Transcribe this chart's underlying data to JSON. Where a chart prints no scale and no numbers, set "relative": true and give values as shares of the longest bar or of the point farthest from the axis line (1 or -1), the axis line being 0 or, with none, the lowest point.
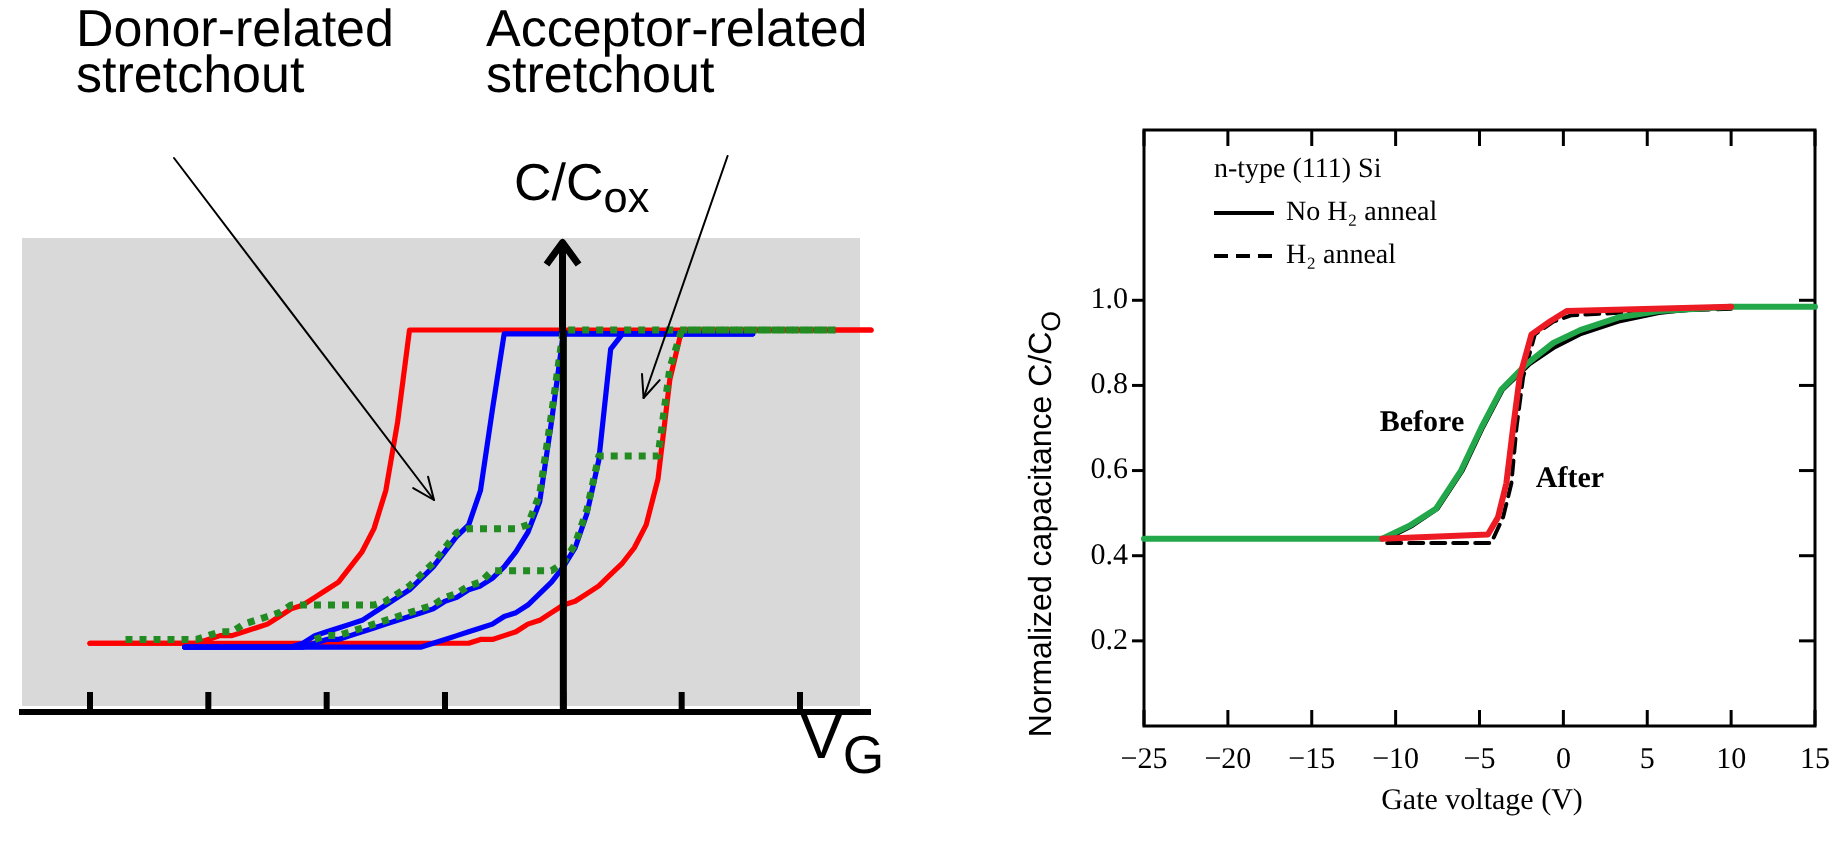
{
  "chart_data": [
    {
      "type": "line",
      "relative": true,
      "marker": "none",
      "xlabel": "V$_{G}$",
      "ylabel": "C/C$_{ox}$",
      "annotations": [
        "Donor-related stretchout",
        "Acceptor-related stretchout"
      ],
      "categories": [
        null,
        null,
        null,
        null,
        null,
        null,
        null,
        null,
        null,
        null,
        null,
        null,
        null,
        null,
        null,
        null,
        null,
        null,
        null,
        null,
        null,
        null,
        null,
        null,
        null,
        null,
        null,
        null,
        null,
        null,
        null,
        null,
        null,
        null,
        null,
        null,
        null,
        null,
        null,
        null,
        null,
        null,
        null,
        null,
        null,
        null,
        null,
        null,
        null,
        null,
        null,
        null,
        null,
        null,
        null,
        null,
        null,
        null,
        null,
        null,
        null,
        null,
        null,
        null,
        null,
        null,
        null,
        null,
        null,
        null,
        null,
        null,
        null
      ],
      "series": [
        {
          "color": "#ff0000",
          "line_style": "solid",
          "values": [
            null,
            null,
            null,
            null,
            null,
            null,
            0.18,
            0.18,
            0.18,
            0.18,
            0.18,
            0.18,
            0.18,
            0.18,
            0.18,
            0.18,
            0.19,
            0.2,
            0.2,
            0.21,
            0.22,
            0.23,
            0.25,
            0.27,
            0.28,
            0.3,
            0.32,
            0.34,
            0.38,
            0.42,
            0.48,
            0.58,
            0.76,
            1,
            1,
            1,
            1,
            1,
            1,
            1,
            1,
            1,
            1,
            1,
            1,
            1,
            1,
            1,
            1,
            1,
            1,
            1,
            1,
            1,
            1,
            1,
            1,
            1,
            1,
            1,
            1,
            1,
            1,
            1,
            1,
            1,
            1,
            1,
            1,
            1,
            1,
            1,
            1
          ]
        },
        {
          "color": "#ff0000",
          "line_style": "solid",
          "values": [
            null,
            null,
            null,
            null,
            null,
            null,
            0.18,
            0.18,
            0.18,
            0.18,
            0.18,
            0.18,
            0.18,
            0.18,
            0.18,
            0.18,
            0.18,
            0.18,
            0.18,
            0.18,
            0.18,
            0.18,
            0.18,
            0.18,
            0.18,
            0.18,
            0.18,
            0.18,
            0.18,
            0.18,
            0.18,
            0.18,
            0.18,
            0.18,
            0.18,
            0.18,
            0.18,
            0.18,
            0.18,
            0.19,
            0.19,
            0.2,
            0.21,
            0.23,
            0.24,
            0.26,
            0.28,
            0.29,
            0.31,
            0.33,
            0.36,
            0.39,
            0.43,
            0.49,
            0.61,
            0.87,
            1,
            1,
            1,
            1,
            1,
            1,
            1,
            1,
            1,
            1,
            1,
            1,
            1,
            1,
            1,
            1,
            1
          ]
        },
        {
          "color": "#0000ff",
          "line_style": "solid",
          "values": [
            null,
            null,
            null,
            null,
            null,
            null,
            null,
            null,
            null,
            null,
            null,
            null,
            null,
            null,
            0.17,
            0.17,
            0.17,
            0.17,
            0.17,
            0.17,
            0.17,
            0.17,
            0.17,
            0.17,
            0.18,
            0.2,
            0.21,
            0.22,
            0.23,
            0.24,
            0.26,
            0.28,
            0.3,
            0.32,
            0.35,
            0.38,
            0.42,
            0.46,
            0.49,
            0.58,
            0.79,
            0.99,
            0.99,
            0.99,
            0.99,
            0.99,
            0.99,
            0.99,
            0.99,
            0.99,
            0.99,
            0.99,
            0.99,
            0.99,
            0.99,
            0.99,
            0.99,
            0.99,
            0.99,
            0.99,
            0.99,
            0.99,
            0.99,
            null,
            null,
            null,
            null,
            null,
            null,
            null,
            null,
            null,
            null
          ]
        },
        {
          "color": "#0000ff",
          "line_style": "solid",
          "values": [
            null,
            null,
            null,
            null,
            null,
            null,
            null,
            null,
            null,
            null,
            null,
            null,
            null,
            null,
            0.17,
            0.17,
            0.17,
            0.17,
            0.17,
            0.17,
            0.17,
            0.17,
            0.17,
            0.17,
            0.17,
            0.18,
            0.19,
            0.19,
            0.2,
            0.21,
            0.22,
            0.23,
            0.24,
            0.25,
            0.26,
            0.27,
            0.29,
            0.3,
            0.32,
            0.33,
            0.35,
            0.38,
            0.42,
            0.47,
            0.55,
            0.76,
            0.99,
            0.99,
            0.99,
            0.99,
            0.99,
            0.99,
            0.99,
            0.99,
            0.99,
            0.99,
            0.99,
            0.99,
            0.99,
            0.99,
            0.99,
            0.99,
            0.99,
            null,
            null,
            null,
            null,
            null,
            null,
            null,
            null,
            null,
            null
          ]
        },
        {
          "color": "#0000ff",
          "line_style": "solid",
          "values": [
            null,
            null,
            null,
            null,
            null,
            null,
            null,
            null,
            null,
            null,
            null,
            null,
            null,
            null,
            0.17,
            0.17,
            0.17,
            0.17,
            0.17,
            0.17,
            0.17,
            0.17,
            0.17,
            0.17,
            0.17,
            0.17,
            0.17,
            0.17,
            0.17,
            0.17,
            0.17,
            0.17,
            0.17,
            0.17,
            0.17,
            0.18,
            0.19,
            0.2,
            0.21,
            0.22,
            0.23,
            0.25,
            0.26,
            0.28,
            0.31,
            0.34,
            0.38,
            0.43,
            0.52,
            0.66,
            0.95,
            0.99,
            0.99,
            0.99,
            0.99,
            0.99,
            0.99,
            0.99,
            0.99,
            0.99,
            0.99,
            0.99,
            0.99,
            null,
            null,
            null,
            null,
            null,
            null,
            null,
            null,
            null,
            null
          ]
        },
        {
          "color": "#228b22",
          "line_style": "dotted",
          "values": [
            null,
            null,
            null,
            null,
            null,
            null,
            null,
            null,
            null,
            0.19,
            0.19,
            0.19,
            0.19,
            0.19,
            0.19,
            0.19,
            0.2,
            0.21,
            0.21,
            0.23,
            0.24,
            0.25,
            0.26,
            0.28,
            0.28,
            0.28,
            0.28,
            0.28,
            0.28,
            0.28,
            0.28,
            0.29,
            0.31,
            0.33,
            0.36,
            0.39,
            0.43,
            0.47,
            0.48,
            0.48,
            0.48,
            0.48,
            0.48,
            0.49,
            0.57,
            0.78,
            1,
            1,
            1,
            1,
            1,
            1,
            1,
            1,
            1,
            1,
            1,
            1,
            1,
            1,
            1,
            1,
            1,
            1,
            1,
            1,
            1,
            1,
            1,
            1,
            null,
            null,
            null
          ]
        },
        {
          "color": "#228b22",
          "line_style": "dotted",
          "values": [
            null,
            null,
            null,
            null,
            null,
            null,
            null,
            null,
            null,
            null,
            null,
            null,
            null,
            null,
            null,
            null,
            null,
            null,
            null,
            null,
            null,
            null,
            null,
            null,
            null,
            0.19,
            0.2,
            0.2,
            0.21,
            0.22,
            0.23,
            0.24,
            0.25,
            0.26,
            0.27,
            0.28,
            0.3,
            0.31,
            0.33,
            0.34,
            0.37,
            0.37,
            0.37,
            0.37,
            0.37,
            0.37,
            0.39,
            0.44,
            0.53,
            0.67,
            0.67,
            0.67,
            0.67,
            0.67,
            0.67,
            0.9,
            1,
            1,
            1,
            1,
            1,
            1,
            1,
            1,
            1,
            1,
            1,
            1,
            1,
            1,
            null,
            null,
            null
          ]
        }
      ]
    },
    {
      "type": "line",
      "legend": "top left",
      "legend_title": "n-type (111) Si",
      "marker": "none",
      "grid": false,
      "xlabel": "Gate voltage (V)",
      "ylabel": "Normalized capacitance C/C$_{O}$",
      "xlim": [
        -25,
        15
      ],
      "ylim": [
        0,
        1.4
      ],
      "xticks": [
        {
          "value": -25,
          "label": "−25"
        },
        {
          "value": -20,
          "label": "−20"
        },
        {
          "value": -15,
          "label": "−15"
        },
        {
          "value": -10,
          "label": "−10"
        },
        {
          "value": -5,
          "label": "−5"
        },
        0,
        5,
        10,
        15
      ],
      "yticks": [
        0.2,
        0.4,
        0.6,
        0.8,
        {
          "value": 1,
          "label": "1.0"
        }
      ],
      "annotations": [
        "Before",
        "After"
      ],
      "series": [
        {
          "name": "No H₂ anneal",
          "color": "#000000",
          "line_style": "solid",
          "x": [
            -25,
            -10.5,
            -9,
            -7.5,
            -6,
            -4.8,
            -3.6,
            -2,
            -0.5,
            1,
            3.3,
            5.7,
            8,
            10,
            15
          ],
          "values": [
            0.44,
            0.44,
            0.47,
            0.51,
            0.6,
            0.7,
            0.79,
            0.85,
            0.89,
            0.92,
            0.95,
            0.97,
            0.98,
            0.985,
            0.985
          ]
        },
        {
          "name": "H₂ anneal",
          "color": "#000000",
          "line_style": "dashed",
          "x": [
            -10.5,
            -4.3,
            -3.6,
            -3.1,
            -2.8,
            -2.4,
            -1.7,
            -0.6,
            0.5,
            3,
            6,
            10
          ],
          "values": [
            0.43,
            0.43,
            0.49,
            0.57,
            0.7,
            0.82,
            0.92,
            0.95,
            0.965,
            0.97,
            0.975,
            0.98
          ]
        },
        {
          "color": "#22a84a",
          "line_style": "solid",
          "x": [
            -25,
            -10.8,
            -9.2,
            -7.6,
            -6.1,
            -4.9,
            -3.7,
            -2.2,
            -0.6,
            1,
            3.3,
            5.7,
            8,
            10,
            15
          ],
          "values": [
            0.44,
            0.44,
            0.47,
            0.51,
            0.6,
            0.7,
            0.79,
            0.85,
            0.9,
            0.93,
            0.96,
            0.975,
            0.98,
            0.985,
            0.985
          ]
        },
        {
          "color": "#ed1c24",
          "line_style": "solid",
          "x": [
            -10.8,
            -4.5,
            -3.9,
            -3.4,
            -3,
            -2.6,
            -1.9,
            -0.8,
            0.2,
            10
          ],
          "values": [
            0.44,
            0.45,
            0.49,
            0.57,
            0.7,
            0.82,
            0.92,
            0.95,
            0.975,
            0.985
          ]
        }
      ]
    }
  ]
}
